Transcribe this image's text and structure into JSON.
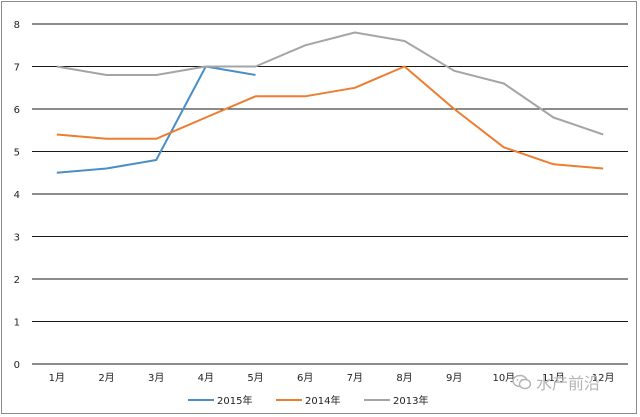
{
  "chart_data": {
    "type": "line",
    "categories": [
      "1月",
      "2月",
      "3月",
      "4月",
      "5月",
      "6月",
      "7月",
      "8月",
      "9月",
      "10月",
      "11月",
      "12月"
    ],
    "series": [
      {
        "name": "2015年",
        "color": "#4a8ec6",
        "values": [
          4.5,
          4.6,
          4.8,
          7.0,
          6.8,
          null,
          null,
          null,
          null,
          null,
          null,
          null
        ]
      },
      {
        "name": "2014年",
        "color": "#ed7d31",
        "values": [
          5.4,
          5.3,
          5.3,
          5.8,
          6.3,
          6.3,
          6.5,
          7.0,
          6.0,
          5.1,
          4.7,
          4.6
        ]
      },
      {
        "name": "2013年",
        "color": "#a5a5a5",
        "values": [
          7.0,
          6.8,
          6.8,
          7.0,
          7.0,
          7.5,
          7.8,
          7.6,
          6.9,
          6.6,
          5.8,
          5.4
        ]
      }
    ],
    "yticks": [
      "0",
      "1",
      "2",
      "3",
      "4",
      "5",
      "6",
      "7",
      "8"
    ],
    "ylim": [
      0,
      8
    ],
    "grid": true,
    "legend_position": "bottom"
  },
  "watermark": {
    "text": "水产前沿"
  }
}
